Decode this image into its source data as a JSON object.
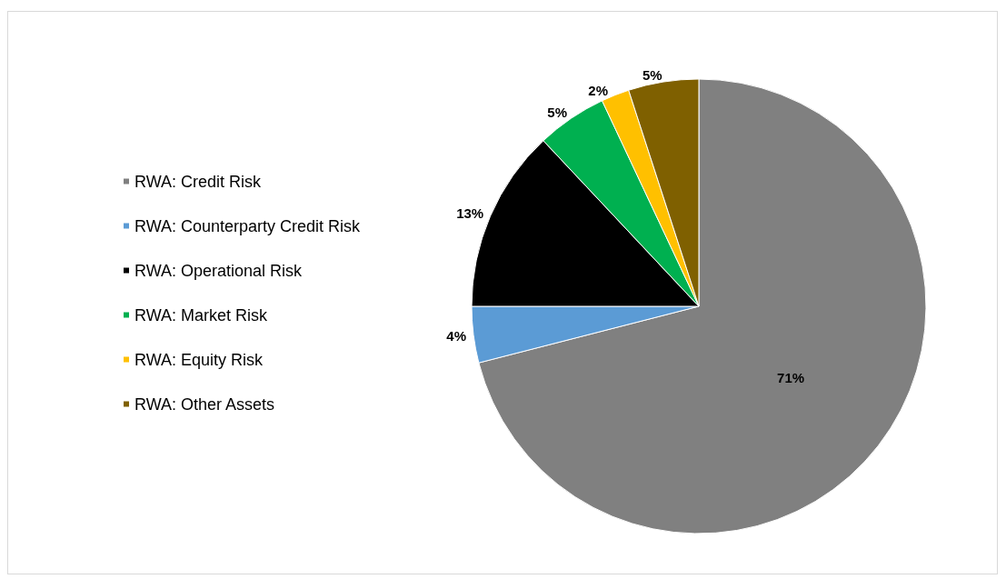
{
  "chart_data": {
    "type": "pie",
    "categories": [
      "RWA: Credit Risk",
      "RWA: Counterparty Credit Risk",
      "RWA: Operational Risk",
      "RWA: Market Risk",
      "RWA: Equity Risk",
      "RWA: Other Assets"
    ],
    "values": [
      71,
      4,
      13,
      5,
      2,
      5
    ],
    "value_labels": [
      "71%",
      "4%",
      "13%",
      "5%",
      "2%",
      "5%"
    ],
    "colors": [
      "#808080",
      "#5b9bd5",
      "#000000",
      "#00b050",
      "#ffc000",
      "#7f6000"
    ],
    "legend": "left"
  }
}
